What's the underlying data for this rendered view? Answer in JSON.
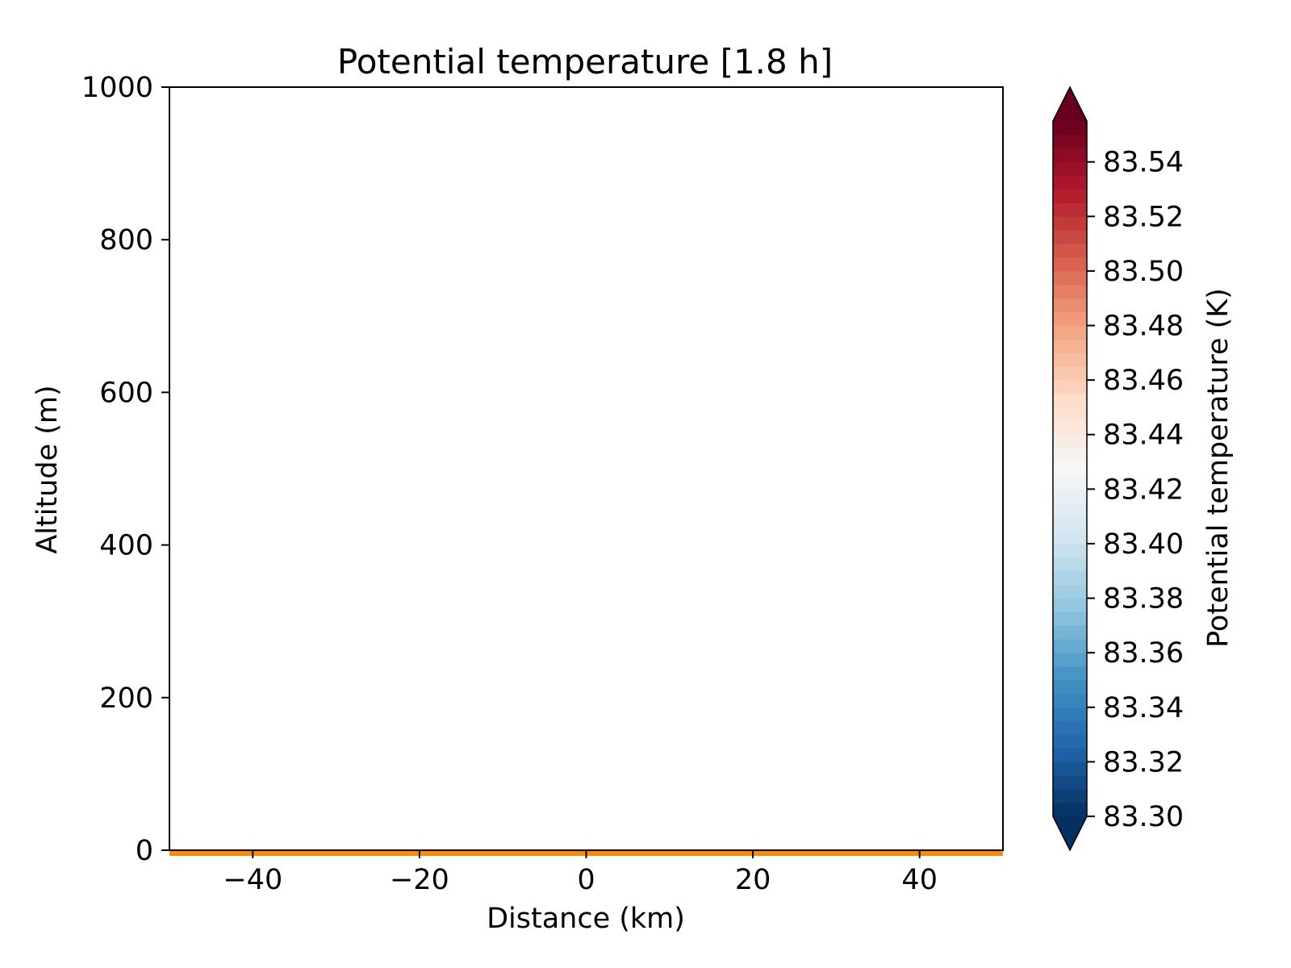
{
  "chart_data": {
    "type": "heatmap",
    "title": "Potential temperature [1.8 h]",
    "xlabel": "Distance (km)",
    "ylabel": "Altitude (m)",
    "xlim": [
      -50,
      50
    ],
    "ylim": [
      0,
      1000
    ],
    "x_ticks": [
      -40,
      -20,
      0,
      20,
      40
    ],
    "x_tick_labels": [
      "−40",
      "−20",
      "0",
      "20",
      "40"
    ],
    "y_ticks": [
      0,
      200,
      400,
      600,
      800,
      1000
    ],
    "y_tick_labels": [
      "0",
      "200",
      "400",
      "600",
      "800",
      "1000"
    ],
    "grid": false,
    "field": "uniform (no contours visible)",
    "surface_line": {
      "altitude": 0,
      "color": "#ff8c00"
    },
    "colorbar": {
      "label": "Potential temperature (K)",
      "cmap": "RdBu_r",
      "extend": "both",
      "range": [
        83.3,
        83.555
      ],
      "ticks": [
        83.3,
        83.32,
        83.34,
        83.36,
        83.38,
        83.4,
        83.42,
        83.44,
        83.46,
        83.48,
        83.5,
        83.52,
        83.54
      ],
      "tick_labels": [
        "83.30",
        "83.32",
        "83.34",
        "83.36",
        "83.38",
        "83.40",
        "83.42",
        "83.44",
        "83.46",
        "83.48",
        "83.50",
        "83.52",
        "83.54"
      ],
      "levels": 51,
      "color_stops": [
        "#053061",
        "#2166ac",
        "#4393c3",
        "#92c5de",
        "#d1e5f0",
        "#f7f7f7",
        "#fddbc7",
        "#f4a582",
        "#d6604d",
        "#b2182b",
        "#67001f"
      ]
    }
  }
}
